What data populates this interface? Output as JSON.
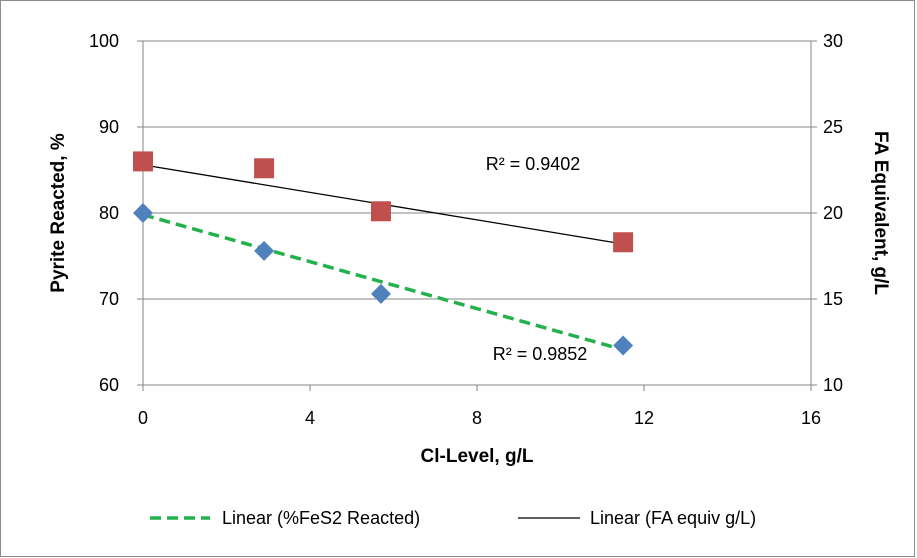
{
  "chart_data": {
    "type": "scatter",
    "xlabel": "Cl-Level, g/L",
    "ylabel": "Pyrite Reacted, %",
    "y2label": "FA Equivalent, g/L",
    "xlim": [
      0,
      16
    ],
    "ylim": [
      60,
      100
    ],
    "y2lim": [
      10,
      30
    ],
    "x_ticks": [
      "0",
      "4",
      "8",
      "12",
      "16"
    ],
    "y_ticks": [
      "60",
      "70",
      "80",
      "90",
      "100"
    ],
    "y2_ticks": [
      "10",
      "15",
      "20",
      "25",
      "30"
    ],
    "grid": true,
    "legend_position": "bottom",
    "series": [
      {
        "marker": "diamond",
        "color": "#4F81BD",
        "axis": "left",
        "points": [
          [
            0,
            80
          ],
          [
            2.9,
            75.6
          ],
          [
            5.7,
            70.6
          ],
          [
            11.5,
            64.6
          ]
        ],
        "trendline": {
          "name": "Linear (%FeS2 Reacted)",
          "color": "#22B14C",
          "style": "dashed",
          "r2_label": "R² = 0.9852",
          "from": [
            0,
            79.8
          ],
          "to": [
            11.5,
            64.1
          ]
        }
      },
      {
        "marker": "square",
        "color": "#C0504D",
        "axis": "right",
        "points": [
          [
            0,
            23
          ],
          [
            2.9,
            22.6
          ],
          [
            5.7,
            20.1
          ],
          [
            11.5,
            18.3
          ]
        ],
        "trendline": {
          "name": "Linear (FA equiv g/L)",
          "color": "#000000",
          "style": "solid",
          "r2_label": "R² = 0.9402",
          "from": [
            0,
            22.8
          ],
          "to": [
            11.5,
            18.2
          ]
        }
      }
    ]
  }
}
